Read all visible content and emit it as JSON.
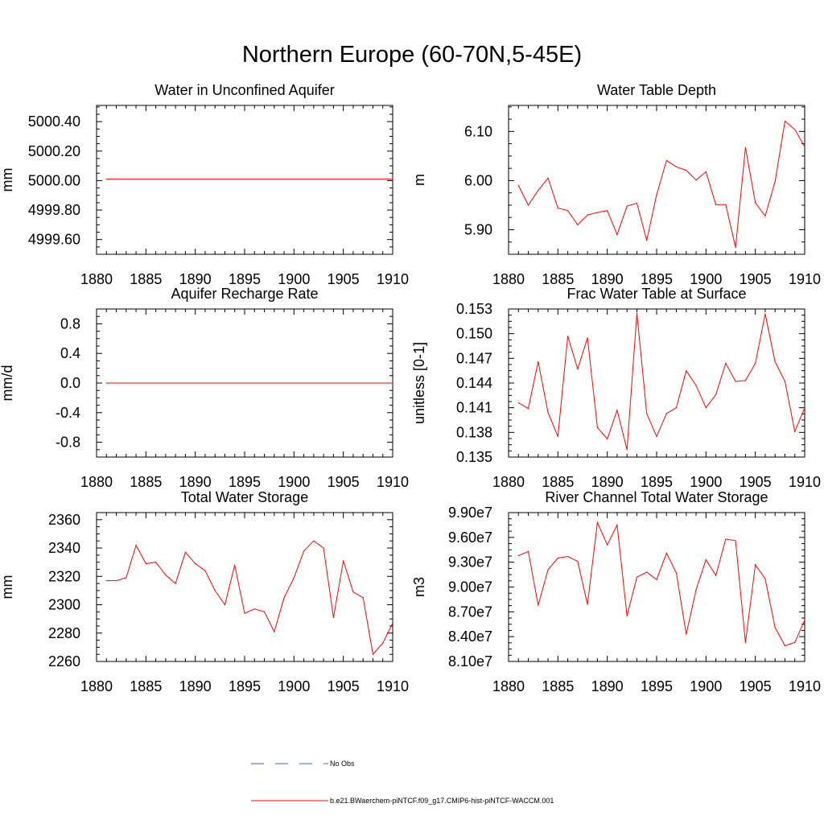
{
  "main_title": "Northern Europe (60-70N,5-45E)",
  "legend": {
    "items": [
      {
        "label": "No Obs",
        "color": "#4060c0",
        "dash": true
      },
      {
        "label": "b.e21.BWaerchem-piNTCF.f09_g17.CMIP6-hist-piNTCF-WACCM.001",
        "color": "#ff0000",
        "dash": false
      }
    ]
  },
  "chart_data": [
    {
      "type": "line",
      "title": "Water in Unconfined Aquifer",
      "ylabel": "mm",
      "xlim": [
        1880,
        1910
      ],
      "ylim": [
        4999.5,
        5000.51
      ],
      "xticks": [
        1880,
        1885,
        1890,
        1895,
        1900,
        1905,
        1910
      ],
      "xtick_labels": [
        "1880",
        "1885",
        "1890",
        "1895",
        "1900",
        "1905",
        "1910"
      ],
      "yticks": [
        4999.6,
        4999.8,
        5000.0,
        5000.2,
        5000.4
      ],
      "ytick_labels": [
        "4999.60",
        "4999.80",
        "5000.00",
        "5000.20",
        "5000.40"
      ],
      "x": [
        1881,
        1910
      ],
      "values": [
        5000.01,
        5000.01
      ],
      "color": "#ff0000"
    },
    {
      "type": "line",
      "title": "Water Table Depth",
      "ylabel": "m",
      "xlim": [
        1880,
        1910
      ],
      "ylim": [
        5.85,
        6.153
      ],
      "xticks": [
        1880,
        1885,
        1890,
        1895,
        1900,
        1905,
        1910
      ],
      "xtick_labels": [
        "1880",
        "1885",
        "1890",
        "1895",
        "1900",
        "1905",
        "1910"
      ],
      "yticks": [
        5.9,
        6.0,
        6.1
      ],
      "ytick_labels": [
        "5.90",
        "6.00",
        "6.10"
      ],
      "x": [
        1881,
        1882,
        1883,
        1884,
        1885,
        1886,
        1887,
        1888,
        1889,
        1890,
        1891,
        1892,
        1893,
        1894,
        1895,
        1896,
        1897,
        1898,
        1899,
        1900,
        1901,
        1902,
        1903,
        1904,
        1905,
        1906,
        1907,
        1908,
        1909,
        1910
      ],
      "values": [
        5.99,
        5.95,
        5.98,
        6.005,
        5.944,
        5.939,
        5.91,
        5.93,
        5.935,
        5.939,
        5.89,
        5.948,
        5.954,
        5.878,
        5.971,
        6.041,
        6.028,
        6.021,
        6.001,
        6.018,
        5.951,
        5.951,
        5.864,
        6.067,
        5.955,
        5.928,
        5.998,
        6.121,
        6.104,
        6.069
      ],
      "color": "#ff0000"
    },
    {
      "type": "line",
      "title": "Aquifer Recharge Rate",
      "ylabel": "mm/d",
      "xlim": [
        1880,
        1910
      ],
      "ylim": [
        -1.0,
        1.0
      ],
      "xticks": [
        1880,
        1885,
        1890,
        1895,
        1900,
        1905,
        1910
      ],
      "xtick_labels": [
        "1880",
        "1885",
        "1890",
        "1895",
        "1900",
        "1905",
        "1910"
      ],
      "yticks": [
        -0.8,
        -0.4,
        0.0,
        0.4,
        0.8
      ],
      "ytick_labels": [
        "-0.8",
        "-0.4",
        "0.0",
        "0.4",
        "0.8"
      ],
      "x": [
        1881,
        1910
      ],
      "values": [
        0.0,
        0.0
      ],
      "color": "#ff0000"
    },
    {
      "type": "line",
      "title": "Frac Water Table at Surface",
      "ylabel": "unitless [0-1]",
      "xlim": [
        1880,
        1910
      ],
      "ylim": [
        0.135,
        0.153
      ],
      "xticks": [
        1880,
        1885,
        1890,
        1895,
        1900,
        1905,
        1910
      ],
      "xtick_labels": [
        "1880",
        "1885",
        "1890",
        "1895",
        "1900",
        "1905",
        "1910"
      ],
      "yticks": [
        0.135,
        0.138,
        0.141,
        0.144,
        0.147,
        0.15,
        0.153
      ],
      "ytick_labels": [
        "0.135",
        "0.138",
        "0.141",
        "0.144",
        "0.147",
        "0.150",
        "0.153"
      ],
      "x": [
        1881,
        1882,
        1883,
        1884,
        1885,
        1886,
        1887,
        1888,
        1889,
        1890,
        1891,
        1892,
        1893,
        1894,
        1895,
        1896,
        1897,
        1898,
        1899,
        1900,
        1901,
        1902,
        1903,
        1904,
        1905,
        1906,
        1907,
        1908,
        1909,
        1910
      ],
      "values": [
        0.1416,
        0.1409,
        0.1466,
        0.1404,
        0.1375,
        0.1497,
        0.1457,
        0.1495,
        0.1386,
        0.1372,
        0.1407,
        0.1359,
        0.1525,
        0.1403,
        0.1375,
        0.1403,
        0.141,
        0.1455,
        0.1437,
        0.141,
        0.1426,
        0.1464,
        0.1442,
        0.1443,
        0.1464,
        0.1524,
        0.1466,
        0.1442,
        0.1381,
        0.141
      ],
      "color": "#ff0000"
    },
    {
      "type": "line",
      "title": "Total Water Storage",
      "ylabel": "mm",
      "xlim": [
        1880,
        1910
      ],
      "ylim": [
        2260,
        2365
      ],
      "xticks": [
        1880,
        1885,
        1890,
        1895,
        1900,
        1905,
        1910
      ],
      "xtick_labels": [
        "1880",
        "1885",
        "1890",
        "1895",
        "1900",
        "1905",
        "1910"
      ],
      "yticks": [
        2260,
        2280,
        2300,
        2320,
        2340,
        2360
      ],
      "ytick_labels": [
        "2260",
        "2280",
        "2300",
        "2320",
        "2340",
        "2360"
      ],
      "x": [
        1881,
        1882,
        1883,
        1884,
        1885,
        1886,
        1887,
        1888,
        1889,
        1890,
        1891,
        1892,
        1893,
        1894,
        1895,
        1896,
        1897,
        1898,
        1899,
        1900,
        1901,
        1902,
        1903,
        1904,
        1905,
        1906,
        1907,
        1908,
        1909,
        1910
      ],
      "values": [
        2317,
        2317,
        2319,
        2342,
        2329,
        2330,
        2321,
        2315,
        2337,
        2329,
        2324,
        2310,
        2300,
        2328,
        2294,
        2297,
        2295,
        2281,
        2305,
        2319,
        2338,
        2345,
        2340,
        2291,
        2331,
        2309,
        2305,
        2265,
        2273,
        2287
      ],
      "color": "#ff0000"
    },
    {
      "type": "line",
      "title": "River Channel Total Water Storage",
      "ylabel": "m3",
      "xlim": [
        1880,
        1910
      ],
      "ylim": [
        81000000,
        99000000
      ],
      "xticks": [
        1880,
        1885,
        1890,
        1895,
        1900,
        1905,
        1910
      ],
      "xtick_labels": [
        "1880",
        "1885",
        "1890",
        "1895",
        "1900",
        "1905",
        "1910"
      ],
      "yticks": [
        81000000,
        84000000,
        87000000,
        90000000,
        93000000,
        96000000,
        99000000
      ],
      "ytick_labels": [
        "8.10e7",
        "8.40e7",
        "8.70e7",
        "9.00e7",
        "9.30e7",
        "9.60e7",
        "9.90e7"
      ],
      "x": [
        1881,
        1882,
        1883,
        1884,
        1885,
        1886,
        1887,
        1888,
        1889,
        1890,
        1891,
        1892,
        1893,
        1894,
        1895,
        1896,
        1897,
        1898,
        1899,
        1900,
        1901,
        1902,
        1903,
        1904,
        1905,
        1906,
        1907,
        1908,
        1909,
        1910
      ],
      "values": [
        93800000,
        94300000,
        87800000,
        92100000,
        93500000,
        93700000,
        93100000,
        87900000,
        97800000,
        95100000,
        97500000,
        86500000,
        91200000,
        91800000,
        90900000,
        94100000,
        91700000,
        84300000,
        89700000,
        93300000,
        91400000,
        95800000,
        95600000,
        83300000,
        92700000,
        91000000,
        85100000,
        82900000,
        83300000,
        86000000
      ],
      "color": "#ff0000"
    }
  ]
}
